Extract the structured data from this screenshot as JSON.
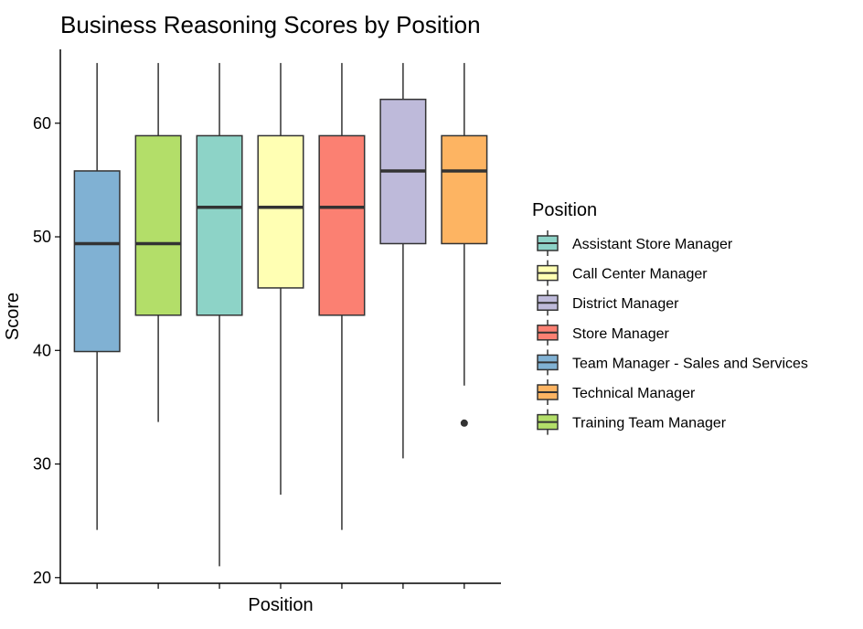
{
  "chart_data": {
    "type": "box",
    "title": "Business Reasoning Scores by Position",
    "xlabel": "Position",
    "ylabel": "Score",
    "ylim": [
      19.5,
      66.5
    ],
    "yticks": [
      20,
      30,
      40,
      50,
      60
    ],
    "grid": false,
    "legend": {
      "title": "Position",
      "placement": "right",
      "entries": [
        {
          "label": "Assistant Store Manager",
          "color": "#8DD3C7"
        },
        {
          "label": "Call Center Manager",
          "color": "#FFFFB3"
        },
        {
          "label": "District Manager",
          "color": "#BEBADA"
        },
        {
          "label": "Store Manager",
          "color": "#FB8072"
        },
        {
          "label": "Team Manager - Sales and Services",
          "color": "#80B1D3"
        },
        {
          "label": "Technical Manager",
          "color": "#FDB462"
        },
        {
          "label": "Training Team Manager",
          "color": "#B3DE69"
        }
      ]
    },
    "boxes": [
      {
        "group": "Team Manager - Sales and Services",
        "color": "#80B1D3",
        "min": 24.2,
        "q1": 39.9,
        "median": 49.4,
        "q3": 55.8,
        "max": 65.3,
        "outliers": []
      },
      {
        "group": "Training Team Manager",
        "color": "#B3DE69",
        "min": 33.7,
        "q1": 43.1,
        "median": 49.4,
        "q3": 58.9,
        "max": 65.3,
        "outliers": []
      },
      {
        "group": "Assistant Store Manager",
        "color": "#8DD3C7",
        "min": 21.0,
        "q1": 43.1,
        "median": 52.6,
        "q3": 58.9,
        "max": 65.3,
        "outliers": []
      },
      {
        "group": "Call Center Manager",
        "color": "#FFFFB3",
        "min": 27.3,
        "q1": 45.5,
        "median": 52.6,
        "q3": 58.9,
        "max": 65.3,
        "outliers": []
      },
      {
        "group": "Store Manager",
        "color": "#FB8072",
        "min": 24.2,
        "q1": 43.1,
        "median": 52.6,
        "q3": 58.9,
        "max": 65.3,
        "outliers": []
      },
      {
        "group": "District Manager",
        "color": "#BEBADA",
        "min": 30.5,
        "q1": 49.4,
        "median": 55.8,
        "q3": 62.1,
        "max": 65.3,
        "outliers": []
      },
      {
        "group": "Technical Manager",
        "color": "#FDB462",
        "min": 36.9,
        "q1": 49.4,
        "median": 55.8,
        "q3": 58.9,
        "max": 65.3,
        "outliers": [
          33.6
        ]
      }
    ]
  }
}
